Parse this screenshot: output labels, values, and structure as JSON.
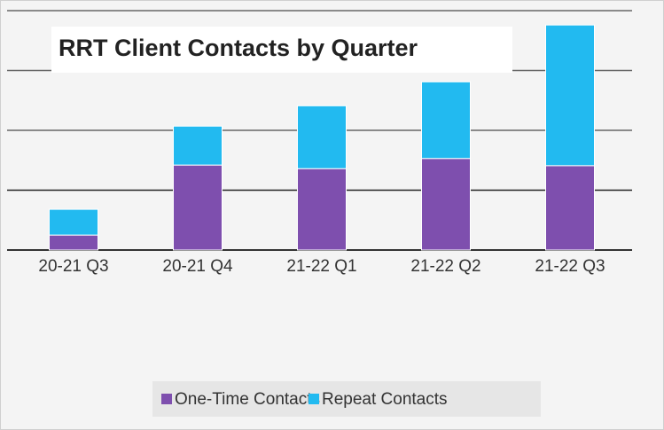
{
  "chart_data": {
    "type": "stacked_bar",
    "title": "RRT Client Contacts by Quarter",
    "categories": [
      "20-21 Q3",
      "20-21 Q4",
      "21-22 Q1",
      "21-22 Q2",
      "21-22 Q3"
    ],
    "series": [
      {
        "name": "One-Time Contacts",
        "color": "#7e4fae",
        "values": [
          0.25,
          1.42,
          1.36,
          1.53,
          1.41
        ]
      },
      {
        "name": "Repeat Contacts",
        "color": "#22baf0",
        "values": [
          0.43,
          0.65,
          1.05,
          1.28,
          2.35
        ]
      }
    ],
    "ylim": [
      0,
      4
    ],
    "yticks": [
      0,
      1,
      2,
      3,
      4
    ],
    "grid": true,
    "tick_labels": false,
    "legend": "bottom"
  }
}
